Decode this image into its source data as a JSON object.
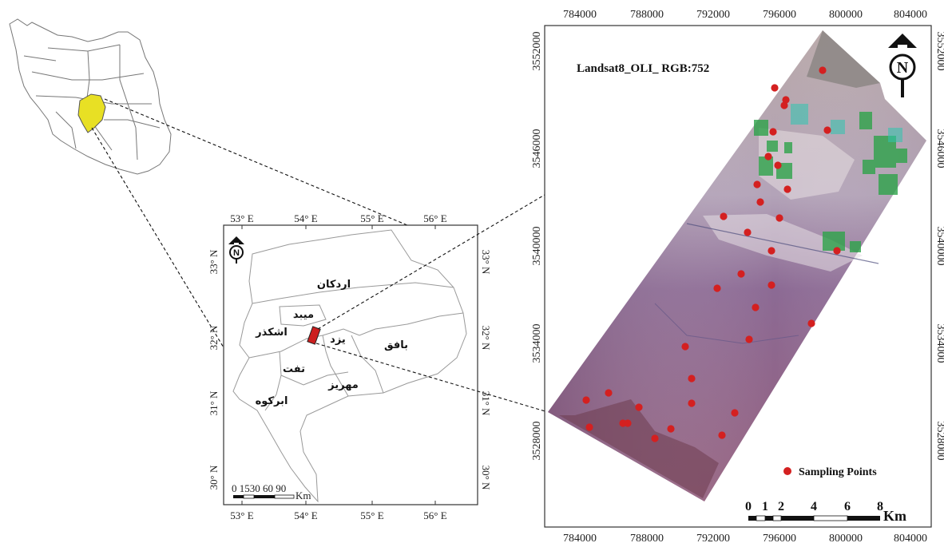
{
  "panel_b": {
    "top_ticks": [
      "53° E",
      "54° E",
      "55° E",
      "56° E"
    ],
    "bottom_ticks": [
      "53° E",
      "54° E",
      "55° E",
      "56° E"
    ],
    "left_ticks": [
      "33° N",
      "32° N",
      "31° N",
      "30° N"
    ],
    "right_ticks": [
      "33° N",
      "32° N",
      "31° N",
      "30° N"
    ],
    "districts": [
      "اردکان",
      "میبد",
      "اشکذر",
      "یزد",
      "بافق",
      "تفت",
      "مهریز",
      "ابرکوه"
    ],
    "scale_text": "0 1530 60 90",
    "scale_unit": "Km",
    "north_label": "N"
  },
  "panel_c": {
    "title": "Landsat8_OLI_ RGB:752",
    "top_ticks": [
      "784000",
      "788000",
      "792000",
      "796000",
      "800000",
      "804000"
    ],
    "bottom_ticks": [
      "784000",
      "788000",
      "792000",
      "796000",
      "800000",
      "804000"
    ],
    "left_ticks": [
      "3552000",
      "3546000",
      "3540000",
      "3534000",
      "3528000"
    ],
    "right_ticks": [
      "3552000",
      "3546000",
      "3540000",
      "3534000",
      "3528000"
    ],
    "legend_label": "Sampling Points",
    "scale_ticks": [
      "0",
      "1",
      "2",
      "4",
      "6",
      "8"
    ],
    "scale_unit": "Km",
    "north_label": "N",
    "point_color": "#d42020"
  }
}
